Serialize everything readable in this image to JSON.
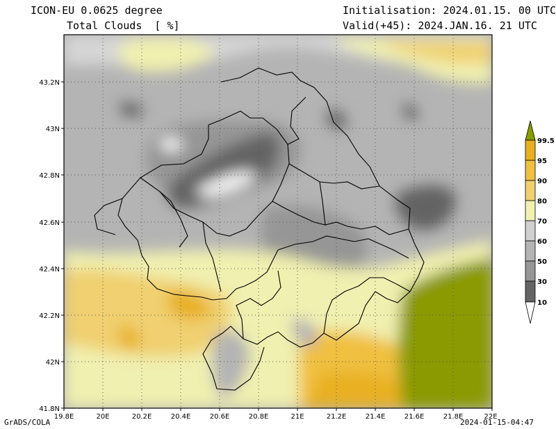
{
  "header": {
    "model": "ICON-EU 0.0625 degree",
    "field": "Total Clouds  [ %]",
    "init": "Initialisation: 2024.01.15. 00 UTC",
    "valid": "Valid(+45): 2024.JAN.16. 21 UTC"
  },
  "axes": {
    "lon_labels": [
      "19.8E",
      "20E",
      "20.2E",
      "20.4E",
      "20.6E",
      "20.8E",
      "21E",
      "21.2E",
      "21.4E",
      "21.6E",
      "21.8E",
      "22E"
    ],
    "lat_labels": [
      "43.2N",
      "43N",
      "42.8N",
      "42.6N",
      "42.4N",
      "42.2N",
      "42N",
      "41.8N"
    ],
    "lon_range": [
      19.8,
      22.0
    ],
    "lat_range": [
      41.8,
      43.4
    ],
    "grid": "dotted"
  },
  "legend": {
    "levels": [
      "99.5",
      "95",
      "90",
      "80",
      "70",
      "60",
      "50",
      "30",
      "10"
    ],
    "colors": [
      "#8a9a00",
      "#e8b020",
      "#f0c040",
      "#f0d070",
      "#f0f0b0",
      "#d0d0d0",
      "#b4b4b4",
      "#969696",
      "#646464",
      "#ffffff"
    ]
  },
  "footer": {
    "credit": "GrADS/COLA",
    "timestamp": "2024-01-15-04:47"
  }
}
